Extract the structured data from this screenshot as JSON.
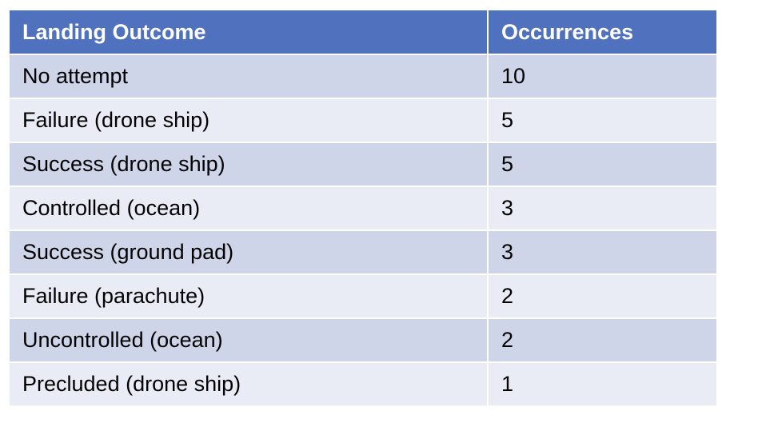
{
  "chart_data": {
    "type": "table",
    "columns": [
      "Landing Outcome",
      "Occurrences"
    ],
    "rows": [
      [
        "No attempt",
        "10"
      ],
      [
        "Failure (drone ship)",
        "5"
      ],
      [
        "Success (drone ship)",
        "5"
      ],
      [
        "Controlled (ocean)",
        "3"
      ],
      [
        "Success (ground pad)",
        "3"
      ],
      [
        "Failure (parachute)",
        "2"
      ],
      [
        "Uncontrolled (ocean)",
        "2"
      ],
      [
        "Precluded (drone ship)",
        "1"
      ]
    ]
  },
  "colors": {
    "header_bg": "#4f71be",
    "row_odd_bg": "#cfd5e8",
    "row_even_bg": "#e9ebf5"
  }
}
